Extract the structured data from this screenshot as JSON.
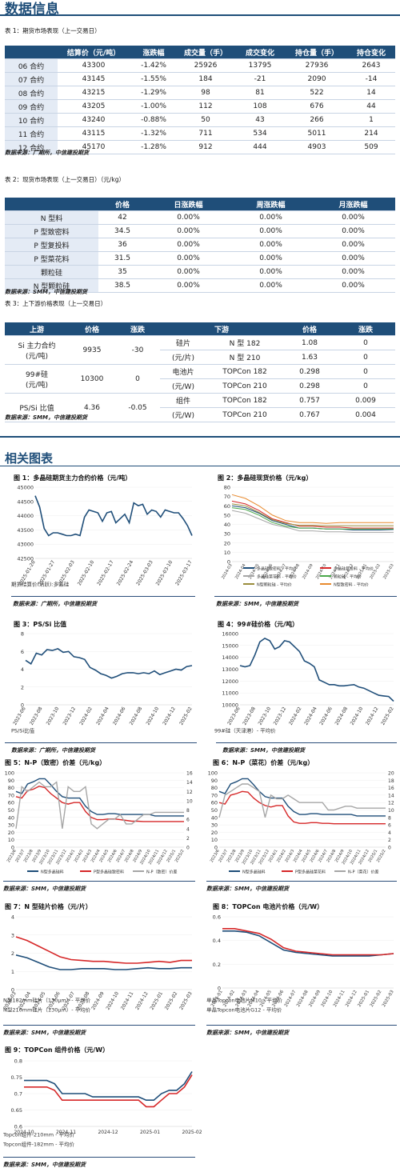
{
  "page": {
    "title": "数据信息"
  },
  "table1": {
    "caption": "表 1：期货市场表现（上一交易日）",
    "headers": [
      "",
      "结算价（元/吨）",
      "涨跌幅",
      "成交量（手）",
      "成交变化",
      "持仓量（手）",
      "持仓变化"
    ],
    "rows": [
      [
        "06 合约",
        "43300",
        "-1.42%",
        "25926",
        "13795",
        "27936",
        "2643"
      ],
      [
        "07 合约",
        "43145",
        "-1.55%",
        "184",
        "-21",
        "2090",
        "-14"
      ],
      [
        "08 合约",
        "43215",
        "-1.29%",
        "98",
        "81",
        "522",
        "14"
      ],
      [
        "09 合约",
        "43205",
        "-1.00%",
        "112",
        "108",
        "676",
        "44"
      ],
      [
        "10 合约",
        "43240",
        "-0.88%",
        "50",
        "43",
        "266",
        "1"
      ],
      [
        "11 合约",
        "43115",
        "-1.32%",
        "711",
        "534",
        "5011",
        "214"
      ],
      [
        "12 合约",
        "45170",
        "-1.28%",
        "912",
        "444",
        "4903",
        "509"
      ]
    ],
    "source": "数据来源：广期所，中信建投期货"
  },
  "table2": {
    "caption": "表 2：现货市场表现（上一交易日）（元/kg）",
    "headers": [
      "",
      "价格",
      "日涨跌幅",
      "周涨跌幅",
      "月涨跌幅"
    ],
    "rows": [
      [
        "N 型料",
        "42",
        "0.00%",
        "0.00%",
        "0.00%"
      ],
      [
        "P 型致密料",
        "34.5",
        "0.00%",
        "0.00%",
        "0.00%"
      ],
      [
        "P 型复投料",
        "36",
        "0.00%",
        "0.00%",
        "0.00%"
      ],
      [
        "P 型菜花料",
        "31.5",
        "0.00%",
        "0.00%",
        "0.00%"
      ],
      [
        "颗粒硅",
        "35",
        "0.00%",
        "0.00%",
        "0.00%"
      ],
      [
        "N 型颗粒硅",
        "38.5",
        "0.00%",
        "0.00%",
        "0.00%"
      ]
    ],
    "source": "数据来源：SMM，中信建投期货"
  },
  "table3": {
    "caption": "表 3：上下游价格表现（上一交易日）",
    "headers": [
      "上游",
      "价格",
      "涨跌",
      "下游",
      "",
      "价格",
      "涨跌"
    ],
    "upstream": [
      {
        "name": [
          "Si 主力合约",
          "(元/吨)"
        ],
        "price": "9935",
        "change": "-30"
      },
      {
        "name": [
          "99#硅",
          "(元/吨)"
        ],
        "price": "10300",
        "change": "0"
      },
      {
        "name": [
          "PS/Si 比值"
        ],
        "price": "4.36",
        "change": "-0.05"
      }
    ],
    "downstream": [
      {
        "group": [
          "硅片",
          "(元/片)"
        ],
        "items": [
          [
            "N 型 182",
            "1.08",
            "0"
          ],
          [
            "N 型 210",
            "1.63",
            "0"
          ]
        ]
      },
      {
        "group": [
          "电池片",
          "(元/W)"
        ],
        "items": [
          [
            "TOPCon 182",
            "0.298",
            "0"
          ],
          [
            "TOPCon 210",
            "0.298",
            "0"
          ]
        ]
      },
      {
        "group": [
          "组件",
          "(元/W)"
        ],
        "items": [
          [
            "TOPCon 182",
            "0.757",
            "0.009"
          ],
          [
            "TOPCon 210",
            "0.767",
            "0.004"
          ]
        ]
      }
    ],
    "source": "数据来源：SMM，中信建投期货"
  },
  "charts_title": "相关图表",
  "sources": {
    "gfex": "数据来源：广期所，中信建投期货",
    "smm": "数据来源：SMM，中信建投期货"
  },
  "colors": {
    "navy": "#1f4e79",
    "red": "#d62728",
    "gray": "#a6a6a6",
    "green": "#4aa84a",
    "orange": "#e88a2e",
    "olive": "#9a8c3c"
  },
  "chart_data": [
    {
      "id": "c1",
      "type": "line",
      "title": "图 1：多晶硅期货主力合约价格（元/吨）",
      "x_ticks": [
        "2025-01-20",
        "2025-01-27",
        "2025-02-03",
        "2025-02-10",
        "2025-02-17",
        "2025-02-24",
        "2025-03-03",
        "2025-03-10",
        "2025-03-17"
      ],
      "ylim": [
        42500,
        45000
      ],
      "y_ticks": [
        "42500",
        "43000",
        "43500",
        "44000",
        "44500",
        "45000"
      ],
      "series": [
        {
          "name": "期货结算价(活跃):多晶硅",
          "color": "#1f4e79",
          "values": [
            44700,
            44300,
            43550,
            43300,
            43400,
            43400,
            43350,
            43300,
            43300,
            43350,
            43300,
            43950,
            44200,
            44150,
            44100,
            43800,
            44100,
            44150,
            43750,
            43900,
            44050,
            43750,
            44450,
            44350,
            44400,
            44050,
            44200,
            44150,
            43950,
            44200,
            44150,
            44100,
            44100,
            43900,
            43650,
            43300
          ]
        }
      ]
    },
    {
      "id": "c2",
      "type": "line",
      "title": "图 2：多晶硅现货价格（元/kg）",
      "x_ticks": [
        "2024-03",
        "2024-04",
        "2024-05",
        "2024-06",
        "2024-07",
        "2024-08",
        "2024-09",
        "2024-10",
        "2024-11",
        "2024-12",
        "2025-01",
        "2025-02",
        "2025-03"
      ],
      "ylim": [
        0,
        80
      ],
      "y_ticks": [
        "0",
        "10",
        "20",
        "30",
        "40",
        "50",
        "60",
        "70",
        "80"
      ],
      "series": [
        {
          "name": "多晶硅致密料 - 平均价",
          "color": "#1f4e79",
          "values": [
            60,
            58,
            52,
            44,
            40,
            36,
            36,
            35,
            35,
            34,
            34,
            34,
            34.5
          ]
        },
        {
          "name": "多晶硅复投料 - 平均价",
          "color": "#d62728",
          "values": [
            65,
            62,
            55,
            46,
            42,
            38,
            38,
            37,
            37,
            36,
            36,
            36,
            36
          ]
        },
        {
          "name": "多晶硅菜花料 - 平均价",
          "color": "#a6a6a6",
          "values": [
            55,
            52,
            46,
            40,
            37,
            33,
            33,
            32,
            32,
            31.5,
            31.5,
            31.5,
            31.5
          ]
        },
        {
          "name": "颗粒硅 - 平均价",
          "color": "#4aa84a",
          "values": [
            58,
            56,
            50,
            42,
            38,
            36,
            36,
            35,
            35,
            35,
            35,
            35,
            35
          ]
        },
        {
          "name": "N型颗粒硅 - 平均价",
          "color": "#9a8c3c",
          "values": [
            62,
            60,
            53,
            45,
            41,
            39,
            39,
            38.5,
            38.5,
            38.5,
            38.5,
            38.5,
            38.5
          ]
        },
        {
          "name": "N型致密料 - 平均价",
          "color": "#e88a2e",
          "values": [
            72,
            68,
            60,
            50,
            44,
            42,
            42,
            41,
            42,
            42,
            42,
            42,
            42
          ]
        }
      ]
    },
    {
      "id": "c3",
      "type": "line",
      "title": "图 3：PS/Si 比值",
      "x_ticks": [
        "2023-06",
        "2023-08",
        "2023-10",
        "2023-12",
        "2024-02",
        "2024-04",
        "2024-06",
        "2024-08",
        "2024-10",
        "2024-12",
        "2025-02"
      ],
      "ylim": [
        0,
        8
      ],
      "y_ticks": [
        "0",
        "2",
        "4",
        "6",
        "8"
      ],
      "series": [
        {
          "name": "PS/Si比值",
          "color": "#1f4e79",
          "values": [
            5.0,
            4.6,
            5.8,
            5.6,
            6.2,
            6.1,
            6.3,
            5.9,
            6.0,
            5.4,
            5.3,
            5.1,
            4.2,
            3.9,
            3.5,
            3.3,
            3.0,
            3.2,
            3.5,
            3.6,
            3.6,
            3.5,
            3.6,
            3.5,
            3.8,
            3.4,
            3.6,
            3.8,
            4.0,
            3.9,
            4.3,
            4.4
          ]
        }
      ]
    },
    {
      "id": "c4",
      "type": "line",
      "title": "图 4：99#硅价格（元/吨）",
      "x_ticks": [
        "2023-06",
        "2023-08",
        "2023-10",
        "2023-12",
        "2024-02",
        "2024-04",
        "2024-06",
        "2024-08",
        "2024-10",
        "2024-12",
        "2025-02"
      ],
      "ylim": [
        10000,
        16000
      ],
      "y_ticks": [
        "10000",
        "11000",
        "12000",
        "13000",
        "14000",
        "15000",
        "16000"
      ],
      "series": [
        {
          "name": "99#硅（天津港）- 平均价",
          "color": "#1f4e79",
          "values": [
            13300,
            13200,
            13300,
            14200,
            15300,
            15600,
            15400,
            14700,
            14900,
            15400,
            15300,
            14900,
            14500,
            13700,
            13500,
            13200,
            12100,
            11900,
            11700,
            11700,
            11600,
            11600,
            11650,
            11700,
            11500,
            11400,
            11200,
            11000,
            10800,
            10750,
            10700,
            10300
          ]
        }
      ]
    },
    {
      "id": "c5",
      "type": "line",
      "title": "图 5：N-P（致密）价差（元/kg）",
      "x_ticks": [
        "2023/6",
        "2023/7",
        "2023/8",
        "2023/9",
        "2023/10",
        "2023/11",
        "2023/12",
        "2024/1",
        "2024/2",
        "2024/3",
        "2024/4",
        "2024/5",
        "2024/6",
        "2024/7",
        "2024/8",
        "2024/9",
        "2024/10",
        "2024/11",
        "2024/12",
        "2025/1",
        "2025/2"
      ],
      "ylim": [
        0,
        100
      ],
      "y_ticks": [
        "0",
        "10",
        "20",
        "30",
        "40",
        "50",
        "60",
        "70",
        "80",
        "90",
        "100"
      ],
      "y2lim": [
        0,
        16
      ],
      "y2_ticks": [
        "0",
        "2",
        "4",
        "6",
        "8",
        "10",
        "12",
        "14",
        "16"
      ],
      "series": [
        {
          "name": "N型多晶硅料",
          "color": "#1f4e79",
          "axis": "left",
          "values": [
            75,
            72,
            85,
            88,
            92,
            92,
            84,
            75,
            68,
            66,
            66,
            66,
            55,
            48,
            44,
            44,
            45,
            45,
            44,
            44,
            44,
            44,
            44,
            44,
            42,
            42,
            42,
            42,
            42,
            42
          ]
        },
        {
          "name": "P型多晶硅致密料",
          "color": "#d62728",
          "axis": "left",
          "values": [
            68,
            66,
            76,
            78,
            82,
            80,
            72,
            66,
            60,
            58,
            60,
            60,
            48,
            40,
            37,
            37,
            38,
            38,
            37,
            36,
            35,
            35,
            34.5,
            34.5,
            34.5,
            34.5,
            34.5,
            34.5,
            34.5,
            34.5
          ]
        },
        {
          "name": "N-P（致密）价差",
          "color": "#a6a6a6",
          "axis": "right",
          "values": [
            4,
            13,
            12,
            13,
            14,
            13,
            13,
            14,
            4,
            13,
            12,
            12,
            13,
            5,
            4,
            5,
            6,
            6,
            7,
            5,
            5,
            6,
            7,
            7,
            7.5,
            7.5,
            7.5,
            7.5,
            7.5,
            7.5
          ]
        }
      ]
    },
    {
      "id": "c6",
      "type": "line",
      "title": "图 6：N-P（菜花）价差（元/kg）",
      "x_ticks": [
        "2023/6",
        "2023/7",
        "2023/8",
        "2023/9",
        "2023/10",
        "2023/11",
        "2023/12",
        "2024/1",
        "2024/2",
        "2024/3",
        "2024/4",
        "2024/5",
        "2024/6",
        "2024/7",
        "2024/8",
        "2024/9",
        "2024/10",
        "2024/11",
        "2024/12",
        "2025/1",
        "2025/2"
      ],
      "ylim": [
        0,
        100
      ],
      "y_ticks": [
        "0",
        "10",
        "20",
        "30",
        "40",
        "50",
        "60",
        "70",
        "80",
        "90",
        "100"
      ],
      "y2lim": [
        0,
        20
      ],
      "y2_ticks": [
        "0",
        "2",
        "4",
        "6",
        "8",
        "10",
        "12",
        "14",
        "16",
        "18",
        "20"
      ],
      "series": [
        {
          "name": "N型多晶硅料",
          "color": "#1f4e79",
          "axis": "left",
          "values": [
            75,
            72,
            85,
            88,
            92,
            92,
            84,
            75,
            68,
            66,
            66,
            66,
            55,
            48,
            44,
            44,
            45,
            45,
            44,
            44,
            44,
            44,
            44,
            44,
            42,
            42,
            42,
            42,
            42,
            42
          ]
        },
        {
          "name": "P型多晶硅菜花料",
          "color": "#d62728",
          "axis": "left",
          "values": [
            60,
            58,
            70,
            72,
            75,
            74,
            66,
            60,
            56,
            54,
            56,
            56,
            42,
            34,
            32,
            32,
            33,
            33,
            32,
            32,
            31.5,
            31.5,
            31.5,
            31.5,
            31.5,
            31.5,
            31.5,
            31.5,
            31.5,
            31.5
          ]
        },
        {
          "name": "N-P（菜花）价差",
          "color": "#a6a6a6",
          "axis": "right",
          "values": [
            8,
            14,
            15,
            16,
            17,
            17,
            16,
            15,
            8,
            14,
            13,
            13,
            14,
            13,
            12,
            12,
            12,
            12,
            12,
            10,
            10,
            10.5,
            11,
            11,
            10.5,
            10.5,
            10.5,
            10.5,
            10.5,
            10.5
          ]
        }
      ]
    },
    {
      "id": "c7",
      "type": "line",
      "title": "图 7：N 型硅片价格（元/片）",
      "x_ticks": [
        "2024-03",
        "2024-04",
        "2024-05",
        "2024-06",
        "2024-07",
        "2024-08",
        "2024-09",
        "2024-10",
        "2024-11",
        "2024-12",
        "2025-01",
        "2025-02",
        "2025-03"
      ],
      "ylim": [
        0,
        4
      ],
      "y_ticks": [
        "0",
        "1",
        "2",
        "3",
        "4"
      ],
      "series": [
        {
          "name": "N型182mm硅片（130μm）- 平均价",
          "color": "#1f4e79",
          "values": [
            1.9,
            1.75,
            1.5,
            1.25,
            1.1,
            1.1,
            1.15,
            1.15,
            1.15,
            1.1,
            1.1,
            1.15,
            1.2,
            1.15,
            1.15,
            1.2,
            1.2
          ]
        },
        {
          "name": "N型210mm硅片（130μm）- 平均价",
          "color": "#d62728",
          "values": [
            2.9,
            2.7,
            2.4,
            2.1,
            1.8,
            1.65,
            1.6,
            1.55,
            1.55,
            1.5,
            1.45,
            1.45,
            1.5,
            1.55,
            1.5,
            1.6,
            1.6
          ]
        }
      ]
    },
    {
      "id": "c8",
      "type": "line",
      "title": "图 8：TOPCon 电池片价格（元/W）",
      "x_ticks": [
        "2024-01",
        "2024-02",
        "2024-03",
        "2024-04",
        "2024-05",
        "2024-06",
        "2024-07",
        "2024-08",
        "2024-09",
        "2024-10",
        "2024-11",
        "2024-12",
        "2025-01",
        "2025-02",
        "2025-03"
      ],
      "ylim": [
        0,
        0.6
      ],
      "y_ticks": [
        "0",
        "0.2",
        "0.4",
        "0.6"
      ],
      "series": [
        {
          "name": "单晶Topcon电池片M10 - 平均价",
          "color": "#1f4e79",
          "values": [
            0.48,
            0.48,
            0.47,
            0.44,
            0.38,
            0.32,
            0.3,
            0.29,
            0.28,
            0.27,
            0.27,
            0.27,
            0.27,
            0.28,
            0.29
          ]
        },
        {
          "name": "单晶Topcon电池片G12 - 平均价",
          "color": "#d62728",
          "values": [
            0.5,
            0.5,
            0.48,
            0.46,
            0.41,
            0.34,
            0.31,
            0.3,
            0.29,
            0.28,
            0.28,
            0.28,
            0.28,
            0.28,
            0.29
          ]
        }
      ]
    },
    {
      "id": "c9",
      "type": "line",
      "title": "图 9：TOPCon 组件价格（元/W）",
      "x_ticks": [
        "2024-10",
        "2024-11",
        "2024-12",
        "2025-01",
        "2025-02"
      ],
      "ylim": [
        0.6,
        0.8
      ],
      "y_ticks": [
        "0.6",
        "0.65",
        "0.7",
        "0.75",
        "0.8"
      ],
      "series": [
        {
          "name": "Topcon组件-210mm - 平均价",
          "color": "#1f4e79",
          "values": [
            0.74,
            0.74,
            0.74,
            0.74,
            0.73,
            0.7,
            0.7,
            0.7,
            0.7,
            0.69,
            0.69,
            0.69,
            0.69,
            0.69,
            0.69,
            0.69,
            0.68,
            0.68,
            0.7,
            0.71,
            0.71,
            0.73,
            0.767
          ]
        },
        {
          "name": "Topcon组件-182mm - 平均价",
          "color": "#d62728",
          "values": [
            0.72,
            0.72,
            0.72,
            0.72,
            0.71,
            0.68,
            0.68,
            0.68,
            0.68,
            0.68,
            0.68,
            0.68,
            0.68,
            0.68,
            0.68,
            0.68,
            0.66,
            0.66,
            0.68,
            0.7,
            0.7,
            0.72,
            0.757
          ]
        }
      ]
    }
  ]
}
